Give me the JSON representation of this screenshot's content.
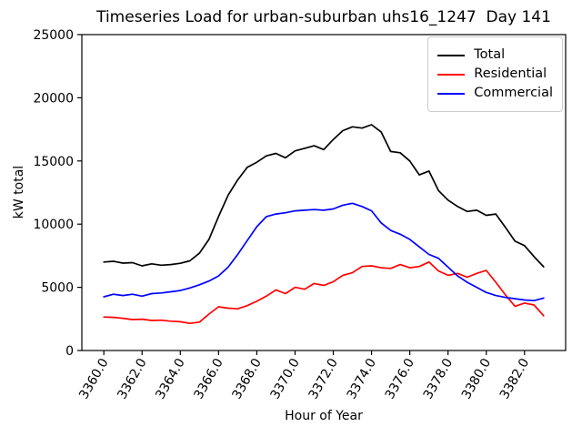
{
  "chart_data": {
    "type": "line",
    "title": "Timeseries Load for urban-suburban uhs16_1247  Day 141",
    "xlabel": "Hour of Year",
    "ylabel": "kW total",
    "xlim": [
      3358.85,
      3384.15
    ],
    "ylim": [
      0,
      25000
    ],
    "grid": false,
    "legend": {
      "position": "upper right"
    },
    "xticks": {
      "values": [
        3360,
        3362,
        3364,
        3366,
        3368,
        3370,
        3372,
        3374,
        3376,
        3378,
        3380,
        3382
      ],
      "labels": [
        "3360.0",
        "3362.0",
        "3364.0",
        "3366.0",
        "3368.0",
        "3370.0",
        "3372.0",
        "3374.0",
        "3376.0",
        "3378.0",
        "3380.0",
        "3382.0"
      ],
      "rotation_deg": 60
    },
    "yticks": {
      "values": [
        0,
        5000,
        10000,
        15000,
        20000,
        25000
      ],
      "labels": [
        "0",
        "5000",
        "10000",
        "15000",
        "20000",
        "25000"
      ]
    },
    "x": [
      3360,
      3360.5,
      3361,
      3361.5,
      3362,
      3362.5,
      3363,
      3363.5,
      3364,
      3364.5,
      3365,
      3365.5,
      3366,
      3366.5,
      3367,
      3367.5,
      3368,
      3368.5,
      3369,
      3369.5,
      3370,
      3370.5,
      3371,
      3371.5,
      3372,
      3372.5,
      3373,
      3373.5,
      3374,
      3374.5,
      3375,
      3375.5,
      3376,
      3376.5,
      3377,
      3377.5,
      3378,
      3378.5,
      3379,
      3379.5,
      3380,
      3380.5,
      3381,
      3381.5,
      3382,
      3382.5,
      3383
    ],
    "series": [
      {
        "name": "Total",
        "color": "#000000",
        "values": [
          7000,
          7060,
          6920,
          6950,
          6700,
          6860,
          6750,
          6800,
          6900,
          7100,
          7700,
          8800,
          10600,
          12300,
          13500,
          14500,
          14900,
          15400,
          15600,
          15250,
          15800,
          16000,
          16200,
          15900,
          16700,
          17400,
          17700,
          17600,
          17870,
          17300,
          15750,
          15650,
          15000,
          13900,
          14200,
          12650,
          11900,
          11400,
          11000,
          11100,
          10700,
          10800,
          9750,
          8650,
          8300,
          7430,
          6630
        ]
      },
      {
        "name": "Residential",
        "color": "#ff0000",
        "values": [
          2650,
          2620,
          2550,
          2450,
          2480,
          2380,
          2400,
          2320,
          2280,
          2150,
          2250,
          2880,
          3460,
          3350,
          3300,
          3550,
          3900,
          4300,
          4800,
          4500,
          5000,
          4850,
          5300,
          5150,
          5450,
          5950,
          6150,
          6650,
          6700,
          6550,
          6500,
          6800,
          6550,
          6650,
          7000,
          6300,
          5950,
          6100,
          5800,
          6100,
          6340,
          5400,
          4400,
          3500,
          3750,
          3600,
          2750
        ]
      },
      {
        "name": "Commercial",
        "color": "#0000ff",
        "values": [
          4250,
          4450,
          4350,
          4450,
          4300,
          4500,
          4550,
          4650,
          4750,
          4950,
          5200,
          5500,
          5900,
          6600,
          7600,
          8700,
          9800,
          10600,
          10800,
          10900,
          11050,
          11100,
          11150,
          11100,
          11200,
          11500,
          11650,
          11400,
          11050,
          10100,
          9500,
          9200,
          8800,
          8200,
          7600,
          7300,
          6600,
          5900,
          5400,
          5000,
          4600,
          4350,
          4200,
          4100,
          4000,
          3950,
          4150
        ]
      }
    ]
  },
  "colors": {
    "background": "#ffffff",
    "axis": "#000000",
    "legend_border": "#cccccc"
  }
}
